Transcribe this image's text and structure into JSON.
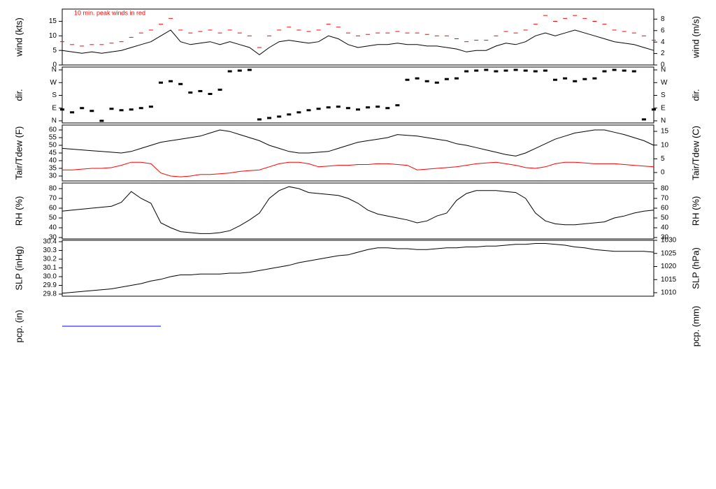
{
  "chart_data": [
    {
      "type": "line",
      "ylabel": "wind (kts)",
      "y2label": "wind (m/s)",
      "annotation": "10 min. peak winds in red",
      "xlim": [
        0,
        60
      ],
      "ylim": [
        0,
        19.2
      ],
      "yticks": [
        0,
        5,
        10,
        15
      ],
      "y2lim": [
        0,
        9.75
      ],
      "y2ticks": [
        0,
        2,
        4,
        6,
        8
      ],
      "series": [
        {
          "color": "#000000",
          "values": [
            5,
            4.5,
            4,
            4.5,
            4,
            4.5,
            5,
            6,
            7,
            8,
            10,
            12,
            8,
            7,
            7.5,
            8,
            7,
            8,
            7,
            6,
            3.5,
            6,
            8,
            8.5,
            8,
            7.5,
            8,
            10,
            9,
            7,
            6,
            6.5,
            7,
            7,
            7.5,
            7,
            7,
            6.5,
            6.5,
            6,
            5.5,
            4.5,
            5,
            5,
            6.5,
            7.5,
            7,
            8,
            10,
            11,
            10,
            11,
            12,
            11,
            10,
            9,
            8,
            7.5,
            7,
            6,
            5
          ]
        },
        {
          "color": "#ff0000",
          "marker": "dash",
          "values": [
            8,
            7,
            6.5,
            7,
            7,
            7.5,
            8,
            9.5,
            11,
            12,
            14,
            16,
            12,
            11,
            11.5,
            12,
            11,
            12,
            11,
            10,
            6,
            10,
            12,
            13,
            12,
            11.5,
            12,
            14,
            13,
            11,
            10,
            10.5,
            11,
            11,
            11.5,
            11,
            11,
            10.5,
            10,
            10,
            9,
            8,
            8.5,
            8.5,
            10,
            11.5,
            11,
            12,
            14,
            17,
            15,
            16,
            17,
            16,
            15,
            14,
            12,
            11.5,
            11,
            10,
            8.5
          ]
        }
      ]
    },
    {
      "type": "scatter",
      "ylabel": "dir.",
      "y2label": "dir.",
      "xlim": [
        0,
        60
      ],
      "ylim": [
        -15,
        380
      ],
      "yticks": [
        {
          "value": 0,
          "label": "N"
        },
        {
          "value": 90,
          "label": "E"
        },
        {
          "value": 180,
          "label": "S"
        },
        {
          "value": 270,
          "label": "W"
        },
        {
          "value": 360,
          "label": "N"
        }
      ],
      "y2lim": [
        -15,
        380
      ],
      "y2ticks": [
        {
          "value": 0,
          "label": "N"
        },
        {
          "value": 90,
          "label": "E"
        },
        {
          "value": 180,
          "label": "S"
        },
        {
          "value": 270,
          "label": "W"
        },
        {
          "value": 360,
          "label": "N"
        }
      ],
      "series": [
        {
          "color": "#000000",
          "values": [
            80,
            60,
            90,
            70,
            0,
            85,
            75,
            80,
            90,
            100,
            270,
            280,
            260,
            200,
            210,
            190,
            220,
            350,
            355,
            360,
            10,
            20,
            30,
            45,
            60,
            75,
            85,
            95,
            100,
            90,
            80,
            95,
            100,
            90,
            110,
            290,
            300,
            280,
            270,
            295,
            300,
            350,
            355,
            360,
            350,
            355,
            360,
            355,
            350,
            355,
            290,
            300,
            280,
            295,
            300,
            350,
            360,
            355,
            350,
            10,
            80
          ]
        }
      ]
    },
    {
      "type": "line",
      "ylabel": "Tair/Tdew (F)",
      "y2label": "Tair/Tdew (C)",
      "xlim": [
        0,
        60
      ],
      "ylim": [
        26.8,
        63.2
      ],
      "yticks": [
        30,
        35,
        40,
        45,
        50,
        55,
        60
      ],
      "y2lim": [
        -3.05,
        17.3
      ],
      "y2ticks": [
        0,
        5,
        10,
        15
      ],
      "series": [
        {
          "color": "#000000",
          "values": [
            48,
            47.5,
            47,
            46.5,
            46,
            45.5,
            45,
            46,
            48,
            50,
            52,
            53,
            54,
            55,
            56,
            58,
            60,
            59,
            57,
            55,
            53,
            50,
            48,
            46,
            45,
            45,
            45.5,
            46,
            48,
            50,
            52,
            53,
            54,
            55,
            57,
            56.5,
            56,
            55,
            54,
            53,
            51,
            50,
            48.5,
            47,
            45.5,
            44,
            43,
            45,
            48,
            51,
            54,
            56,
            58,
            59,
            60,
            60,
            58.5,
            57,
            55,
            53,
            50
          ]
        },
        {
          "color": "#ff0000",
          "values": [
            34,
            34,
            34.5,
            35,
            35,
            35.5,
            37,
            39,
            39,
            38,
            32,
            30,
            29.5,
            30,
            31,
            31,
            31.5,
            32,
            33,
            33.5,
            34,
            36,
            38,
            39,
            39,
            38,
            36,
            36.5,
            37,
            37,
            37.5,
            37.5,
            38,
            38,
            37.5,
            37,
            34,
            34.5,
            35,
            35.5,
            36,
            37,
            38,
            38.5,
            39,
            38,
            37,
            35.5,
            35,
            36,
            38,
            39,
            39,
            38.5,
            38,
            38,
            38,
            37.5,
            37,
            36.5,
            36
          ]
        }
      ]
    },
    {
      "type": "line",
      "ylabel": "RH (%)",
      "y2label": "RH (%)",
      "xlim": [
        0,
        60
      ],
      "ylim": [
        28.6,
        85.7
      ],
      "yticks": [
        30,
        40,
        50,
        60,
        70,
        80
      ],
      "y2lim": [
        28.6,
        85.7
      ],
      "y2ticks": [
        30,
        40,
        50,
        60,
        70,
        80
      ],
      "series": [
        {
          "color": "#000000",
          "values": [
            57,
            58,
            59,
            60,
            61,
            62,
            66,
            77,
            70,
            65,
            45,
            40,
            36,
            35,
            34,
            34,
            35,
            37,
            42,
            48,
            55,
            70,
            78,
            82,
            80,
            76,
            75,
            74,
            73,
            70,
            65,
            58,
            54,
            52,
            50,
            48,
            45,
            47,
            52,
            55,
            68,
            75,
            78,
            78,
            78,
            77,
            76,
            70,
            55,
            47,
            44,
            43,
            43,
            44,
            45,
            46,
            50,
            52,
            55,
            57,
            58
          ]
        }
      ]
    },
    {
      "type": "line",
      "ylabel": "SLP (inHg)",
      "y2label": "SLP (hPa)",
      "xlim": [
        0,
        60
      ],
      "ylim": [
        29.776,
        30.416
      ],
      "yticks": [
        29.8,
        29.9,
        {
          "value": 30,
          "label": "30.0"
        },
        30.1,
        30.2,
        30.3,
        30.4
      ],
      "y2lim": [
        1008.67,
        1030
      ],
      "y2ticks": [
        1010,
        1015,
        1020,
        1025,
        1030
      ],
      "series": [
        {
          "color": "#000000",
          "values": [
            29.81,
            29.82,
            29.83,
            29.84,
            29.85,
            29.86,
            29.88,
            29.9,
            29.92,
            29.95,
            29.97,
            30,
            30.02,
            30.02,
            30.03,
            30.03,
            30.03,
            30.04,
            30.04,
            30.05,
            30.07,
            30.09,
            30.11,
            30.13,
            30.16,
            30.18,
            30.2,
            30.22,
            30.24,
            30.25,
            30.28,
            30.31,
            30.33,
            30.33,
            30.32,
            30.32,
            30.31,
            30.31,
            30.32,
            30.33,
            30.33,
            30.34,
            30.34,
            30.35,
            30.35,
            30.36,
            30.37,
            30.37,
            30.38,
            30.38,
            30.37,
            30.36,
            30.34,
            30.33,
            30.31,
            30.3,
            30.29,
            30.29,
            30.29,
            30.29,
            30.28
          ]
        }
      ]
    },
    {
      "type": "line",
      "ylabel": "pcp. (in)",
      "y2label": "pcp. (mm)",
      "box": false,
      "xlim": [
        0,
        60
      ],
      "ylim": [
        -1,
        1
      ],
      "series": [
        {
          "color": "#0000ff",
          "values": [
            0,
            0,
            0,
            0,
            0,
            0,
            0,
            0,
            0,
            0,
            0
          ]
        }
      ]
    }
  ]
}
